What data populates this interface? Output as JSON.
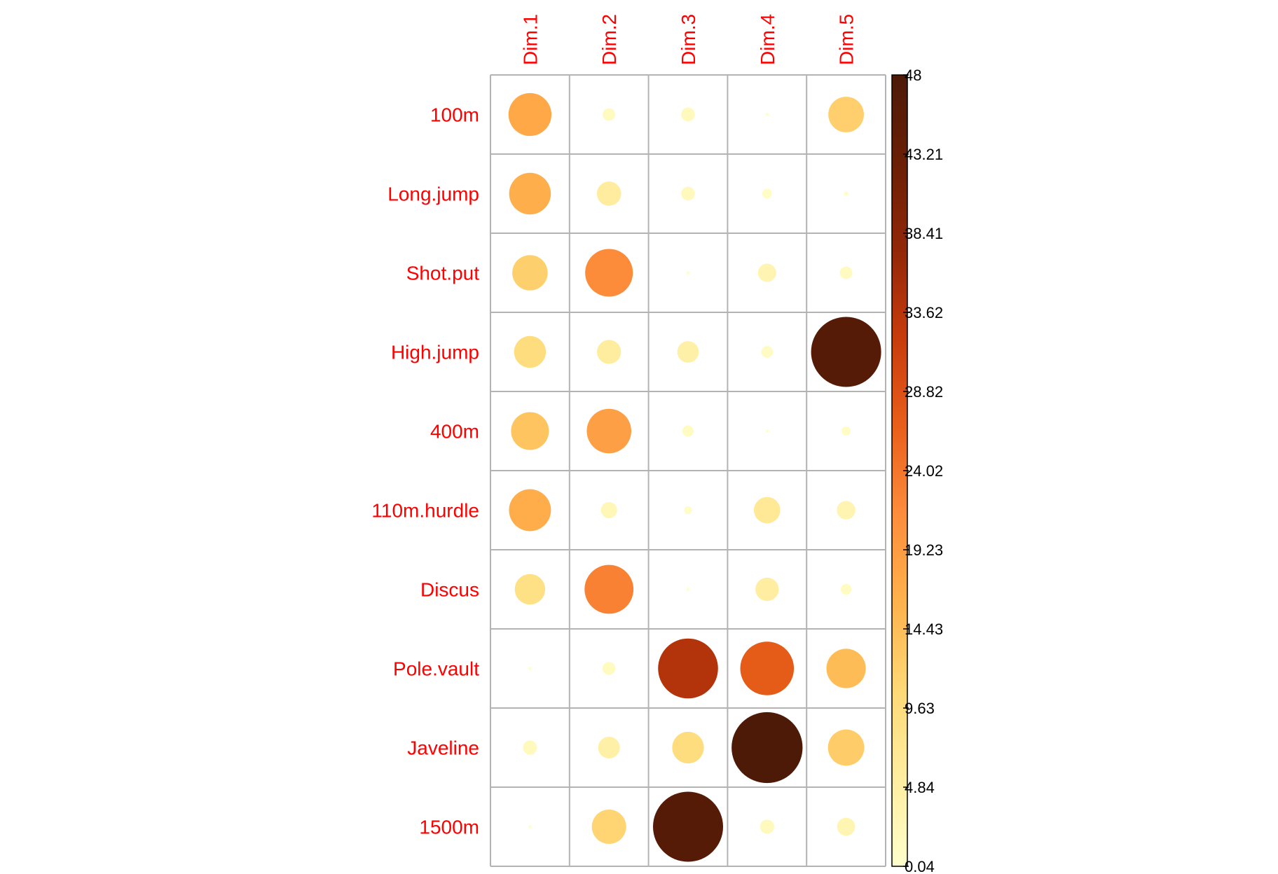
{
  "chart_data": {
    "type": "heatmap",
    "title": "",
    "xlabel": "",
    "ylabel": "",
    "columns": [
      "Dim.1",
      "Dim.2",
      "Dim.3",
      "Dim.4",
      "Dim.5"
    ],
    "rows": [
      "100m",
      "Long.jump",
      "Shot.put",
      "High.jump",
      "400m",
      "110m.hurdle",
      "Discus",
      "Pole.vault",
      "Javeline",
      "1500m"
    ],
    "values": [
      [
        17.5,
        1.5,
        1.8,
        0.1,
        12.0
      ],
      [
        16.5,
        5.6,
        1.8,
        0.9,
        0.2
      ],
      [
        11.9,
        21.6,
        0.1,
        3.2,
        1.5
      ],
      [
        9.6,
        5.5,
        4.4,
        1.3,
        46.6
      ],
      [
        13.6,
        18.8,
        1.2,
        0.1,
        0.8
      ],
      [
        16.7,
        2.5,
        0.6,
        6.6,
        3.3
      ],
      [
        8.8,
        22.7,
        0.1,
        5.2,
        1.1
      ],
      [
        0.1,
        1.6,
        34.1,
        27.3,
        14.7
      ],
      [
        1.9,
        4.5,
        9.5,
        47.8,
        12.5
      ],
      [
        0.1,
        11.2,
        46.6,
        1.9,
        3.1
      ]
    ],
    "legend": {
      "position": "right",
      "min": 0.04,
      "max": 48,
      "ticks": [
        "48",
        "43.21",
        "38.41",
        "33.62",
        "28.82",
        "24.02",
        "19.23",
        "14.43",
        "9.63",
        "4.84",
        "0.04"
      ]
    },
    "color_scale": [
      "#FFFFCC",
      "#FFEDA0",
      "#FED976",
      "#FEB24C",
      "#FD8D3C",
      "#E95F1A",
      "#C83C0C",
      "#922708",
      "#6A1F06",
      "#4D1A08"
    ]
  }
}
